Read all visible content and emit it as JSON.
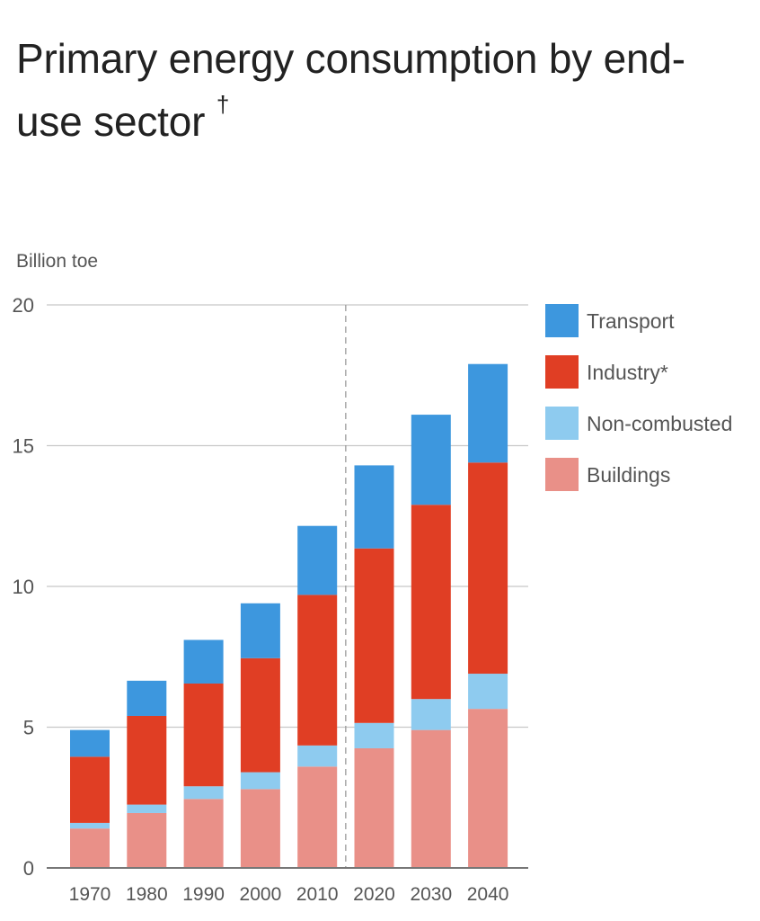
{
  "title": "Primary energy consumption by end-use sector",
  "title_text": "Primary energy consumption by end-\nuse sector",
  "title_mark": "†",
  "colors": {
    "Transport": "#3d97de",
    "Industry*": "#e03e24",
    "Non-combusted": "#8ecbef",
    "Buildings": "#e99088",
    "grid": "#c8c8c8",
    "divider": "#999999"
  },
  "chart_data": {
    "type": "bar",
    "stacked": true,
    "title": "Primary energy consumption by end-use sector",
    "ylabel": "Billion toe",
    "xlabel": "",
    "ylim": [
      0,
      20
    ],
    "yticks": [
      0,
      5,
      10,
      15,
      20
    ],
    "categories": [
      "1970",
      "1980",
      "1990",
      "2000",
      "2010",
      "2020",
      "2030",
      "2040"
    ],
    "projection_starts_after": "2010",
    "legend_position": "right",
    "series": [
      {
        "name": "Buildings",
        "values": [
          1.4,
          1.95,
          2.45,
          2.8,
          3.6,
          4.25,
          4.9,
          5.65
        ]
      },
      {
        "name": "Non-combusted",
        "values": [
          0.2,
          0.3,
          0.45,
          0.6,
          0.75,
          0.9,
          1.1,
          1.25
        ]
      },
      {
        "name": "Industry*",
        "values": [
          2.35,
          3.15,
          3.65,
          4.05,
          5.35,
          6.2,
          6.9,
          7.5
        ]
      },
      {
        "name": "Transport",
        "values": [
          0.95,
          1.25,
          1.55,
          1.95,
          2.45,
          2.95,
          3.2,
          3.5
        ]
      }
    ],
    "legend_order": [
      "Transport",
      "Industry*",
      "Non-combusted",
      "Buildings"
    ]
  }
}
